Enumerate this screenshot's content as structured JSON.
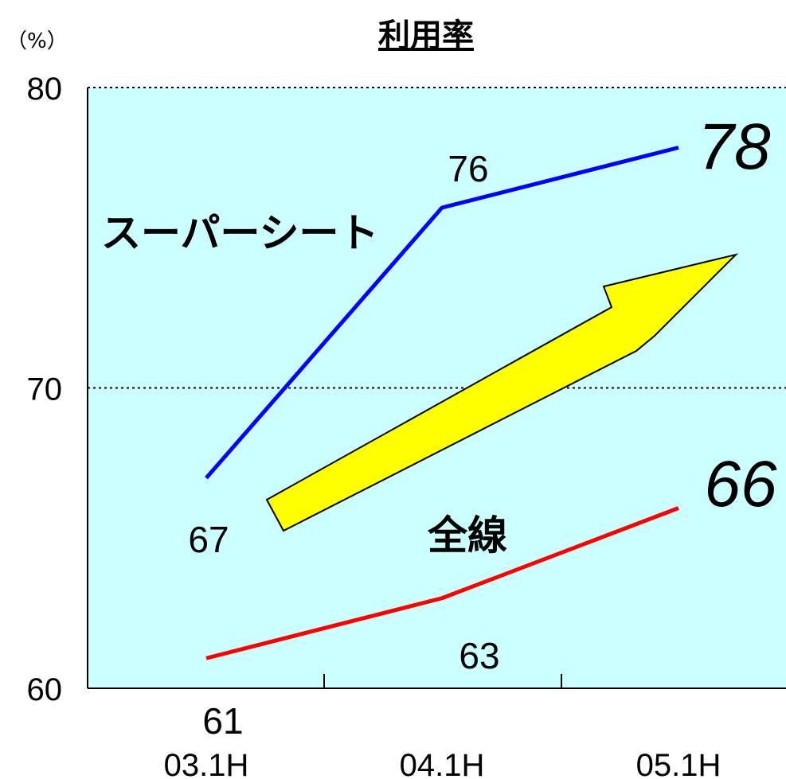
{
  "chart_data": {
    "type": "line",
    "title": "利用率",
    "ylabel": "（%）",
    "categories": [
      "03.1H",
      "04.1H",
      "05.1H"
    ],
    "ylim": [
      60,
      80
    ],
    "yticks": [
      60,
      70,
      80
    ],
    "gridlines": [
      70,
      80
    ],
    "background_color": "#ccffff",
    "series": [
      {
        "name": "スーパーシート",
        "color": "#0000ff",
        "values": [
          67,
          76,
          78
        ],
        "labels": [
          "67",
          "76",
          "78"
        ]
      },
      {
        "name": "全線",
        "color": "#ff0000",
        "values": [
          61,
          63,
          66
        ],
        "labels": [
          "61",
          "63",
          "66"
        ]
      }
    ],
    "annotation": {
      "shape": "upward-trend-arrow",
      "color": "#ffff00"
    }
  }
}
